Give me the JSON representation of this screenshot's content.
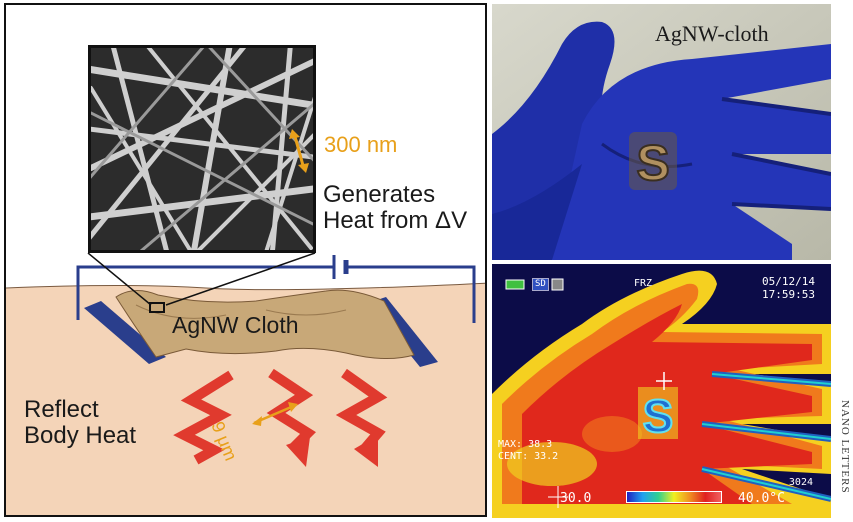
{
  "schematic": {
    "scale_label": "300 nm",
    "generates_line1": "Generates",
    "generates_line2": "Heat from ΔV",
    "cloth_label": "AgNW Cloth",
    "reflect_line1": "Reflect",
    "reflect_line2": "Body Heat",
    "micron_label": "9 μm"
  },
  "photo": {
    "caption": "AgNW-cloth",
    "letter": "S"
  },
  "thermal": {
    "date": "05/12/14",
    "time": "17:59:53",
    "frz": "FRZ",
    "sd": "SD",
    "max": "MAX: 38.3",
    "cent": "CENT: 33.2",
    "frame": "3024",
    "scale_min": "30.0",
    "scale_max": "40.0°C"
  },
  "journal": "NANO LETTERS",
  "colors": {
    "accent_orange": "#e8a01a",
    "skin": "#f4d4b8",
    "cloth": "#c8a878",
    "circuit_blue": "#2a3e8c",
    "arrow_red": "#e03a2e",
    "glove_blue": "#1f2fa8"
  }
}
